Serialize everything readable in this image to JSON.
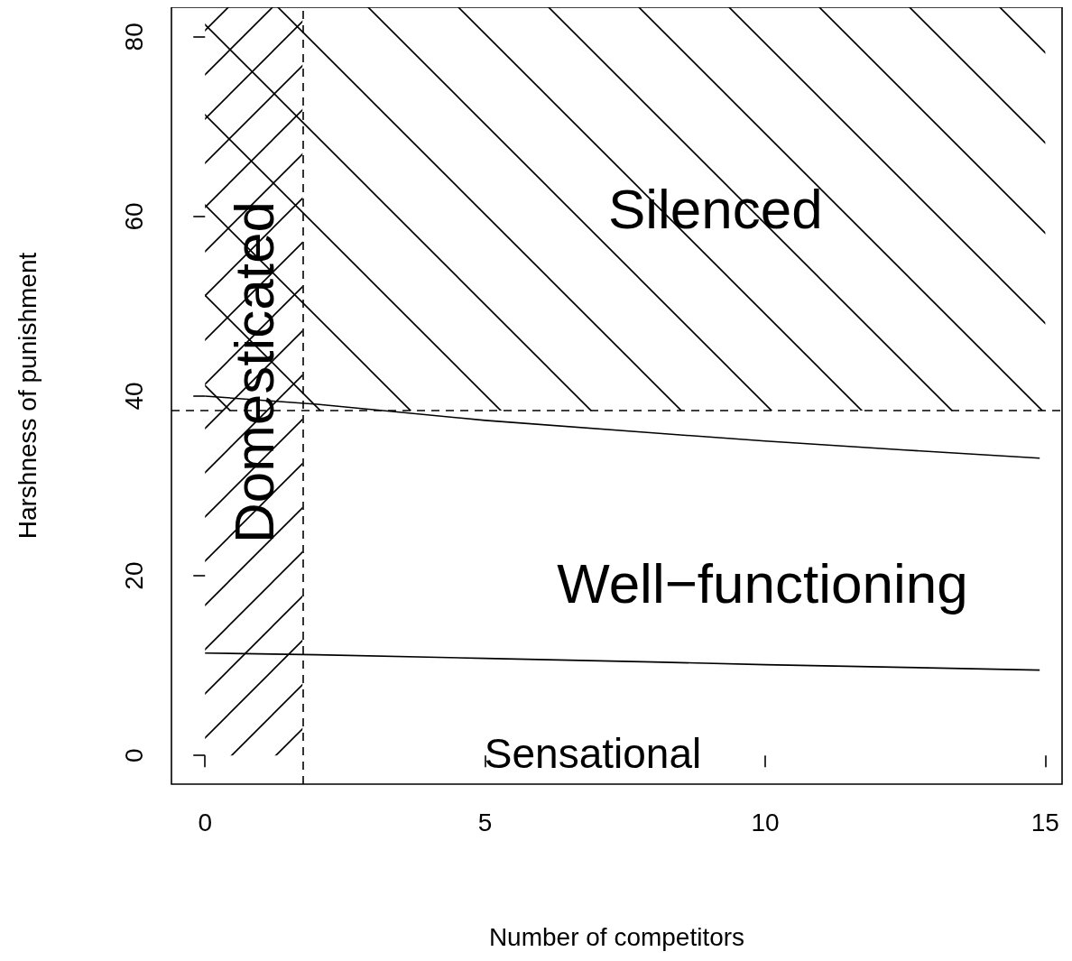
{
  "chart_data": {
    "type": "line",
    "xlabel": "Number of competitors",
    "ylabel": "Harshness of punishment",
    "xlim": [
      -0.6,
      15.3
    ],
    "ylim": [
      -3.2,
      83.3
    ],
    "xticks": [
      0,
      5,
      10,
      15
    ],
    "yticks": [
      0,
      20,
      40,
      60,
      80
    ],
    "grid": false,
    "marker": "none",
    "line_style": "solid",
    "series": [
      {
        "color": "#000000",
        "x": [
          0,
          2,
          5,
          8,
          10,
          12.5,
          14.9
        ],
        "values": [
          40,
          39.1,
          37.3,
          35.9,
          35,
          34,
          33.1
        ]
      },
      {
        "color": "#000000",
        "x": [
          0,
          2,
          5,
          8,
          10,
          12.5,
          14.9
        ],
        "values": [
          11.4,
          11.2,
          10.8,
          10.4,
          10.1,
          9.8,
          9.5
        ]
      }
    ],
    "ref_lines": [
      {
        "axis": "x",
        "value": 1.74,
        "line_style": "dashed"
      },
      {
        "axis": "y",
        "value": 38.4,
        "line_style": "dashed"
      }
    ],
    "bands": [
      {
        "axis": "x",
        "from": 0,
        "to": 1.74,
        "label": "Domesticated"
      },
      {
        "axis": "y",
        "from": 38.4,
        "to": 83.3,
        "label": "Silenced"
      }
    ],
    "annotations": [
      "Well−functioning",
      "Sensational"
    ]
  }
}
